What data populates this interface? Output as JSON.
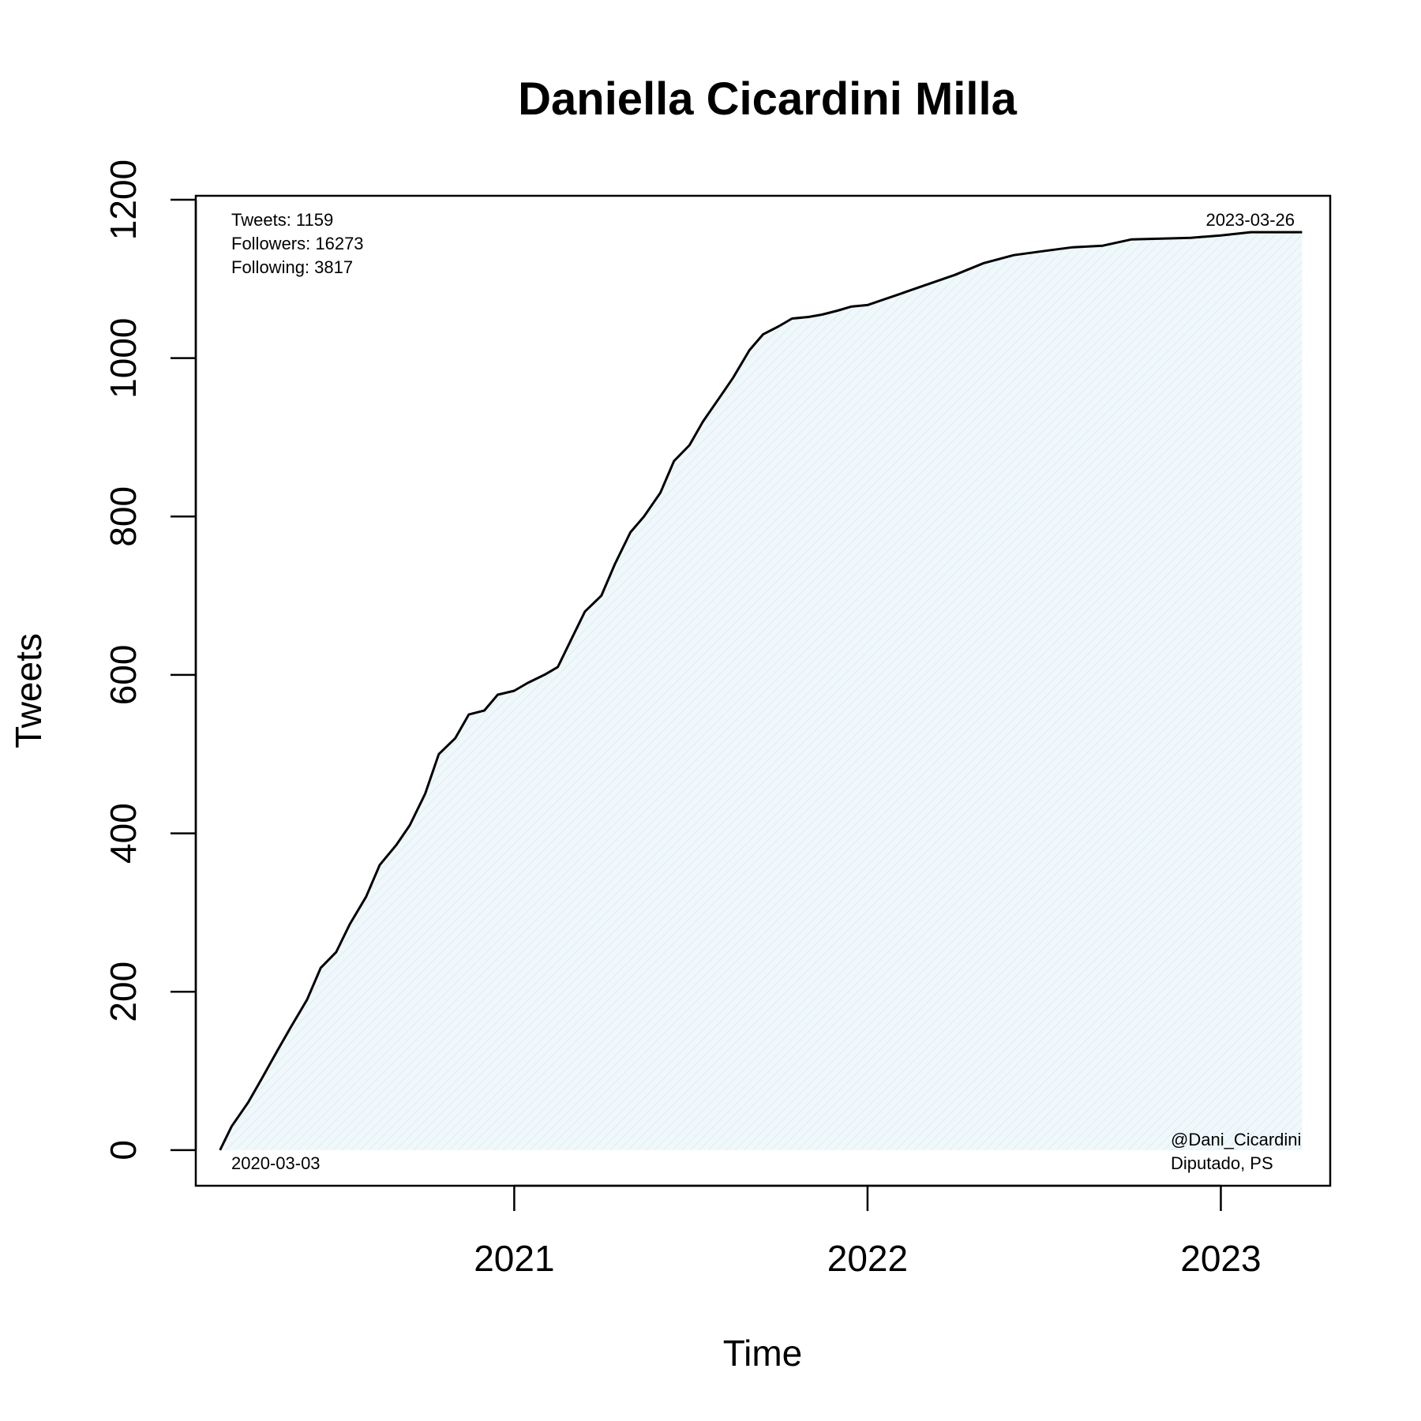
{
  "chart_data": {
    "type": "area",
    "title": "Daniella Cicardini Milla",
    "xlabel": "Time",
    "ylabel": "Tweets",
    "x_ticks": [
      "2021",
      "2022",
      "2023"
    ],
    "y_ticks": [
      0,
      200,
      400,
      600,
      800,
      1000,
      1200
    ],
    "xlim": [
      "2020-02-07",
      "2023-04-24"
    ],
    "ylim": [
      -45,
      1205
    ],
    "grid": false,
    "fill_color": "#e8f4f8",
    "line_color": "#000000",
    "stats": [
      "Tweets: 1159",
      "Followers: 16273",
      "Following: 3817"
    ],
    "start_label": "2020-03-03",
    "end_label": "2023-03-26",
    "handle": "@Dani_Cicardini",
    "role": "Diputado, PS",
    "series": [
      {
        "x": [
          "2020-03-03",
          "2020-03-15",
          "2020-04-01",
          "2020-04-15",
          "2020-05-01",
          "2020-05-15",
          "2020-06-01",
          "2020-06-15",
          "2020-07-01",
          "2020-07-15",
          "2020-08-01",
          "2020-08-15",
          "2020-09-01",
          "2020-09-15",
          "2020-10-01",
          "2020-10-15",
          "2020-11-01",
          "2020-11-15",
          "2020-12-01",
          "2020-12-15",
          "2021-01-01",
          "2021-01-15",
          "2021-02-01",
          "2021-02-15",
          "2021-03-01",
          "2021-03-15",
          "2021-04-01",
          "2021-04-15",
          "2021-05-01",
          "2021-05-15",
          "2021-06-01",
          "2021-06-15",
          "2021-07-01",
          "2021-07-15",
          "2021-08-01",
          "2021-08-15",
          "2021-09-01",
          "2021-09-15",
          "2021-10-01",
          "2021-10-15",
          "2021-11-01",
          "2021-11-15",
          "2021-12-01",
          "2021-12-15",
          "2022-01-01",
          "2022-02-01",
          "2022-03-01",
          "2022-04-01",
          "2022-05-01",
          "2022-06-01",
          "2022-07-01",
          "2022-08-01",
          "2022-09-01",
          "2022-10-01",
          "2022-11-01",
          "2022-12-01",
          "2023-01-01",
          "2023-02-01",
          "2023-03-01",
          "2023-03-26"
        ],
        "values": [
          0,
          30,
          60,
          90,
          125,
          155,
          190,
          230,
          250,
          285,
          320,
          360,
          385,
          410,
          450,
          500,
          520,
          550,
          555,
          575,
          580,
          590,
          600,
          610,
          645,
          680,
          700,
          740,
          780,
          800,
          830,
          870,
          890,
          920,
          950,
          975,
          1010,
          1030,
          1040,
          1050,
          1052,
          1055,
          1060,
          1065,
          1067,
          1080,
          1092,
          1105,
          1120,
          1130,
          1135,
          1140,
          1142,
          1150,
          1151,
          1152,
          1155,
          1159,
          1159,
          1159
        ]
      }
    ]
  }
}
